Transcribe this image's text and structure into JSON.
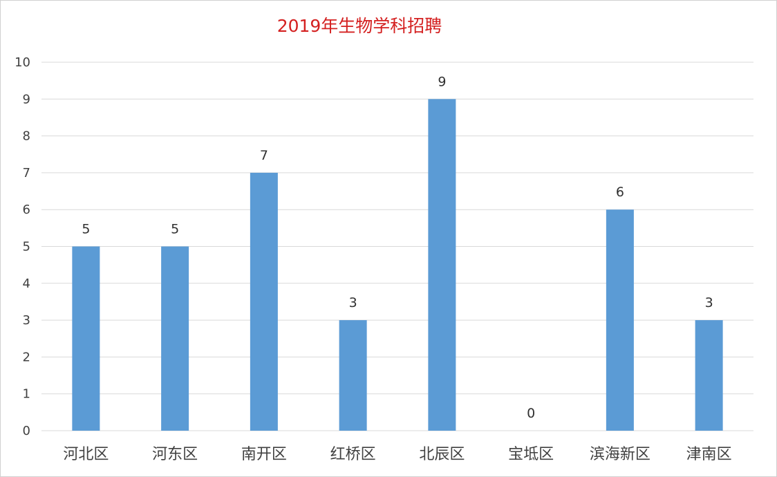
{
  "chart_data": {
    "type": "bar",
    "title": "2019年生物学科招聘",
    "categories": [
      "河北区",
      "河东区",
      "南开区",
      "红桥区",
      "北辰区",
      "宝坻区",
      "滨海新区",
      "津南区"
    ],
    "values": [
      5,
      5,
      7,
      3,
      9,
      0,
      6,
      3
    ],
    "xlabel": "",
    "ylabel": "",
    "ylim": [
      0,
      10
    ],
    "yticks": [
      0,
      1,
      2,
      3,
      4,
      5,
      6,
      7,
      8,
      9,
      10
    ],
    "grid": true,
    "data_labels": true,
    "bar_color": "#5b9bd5",
    "title_color": "#d42020"
  }
}
